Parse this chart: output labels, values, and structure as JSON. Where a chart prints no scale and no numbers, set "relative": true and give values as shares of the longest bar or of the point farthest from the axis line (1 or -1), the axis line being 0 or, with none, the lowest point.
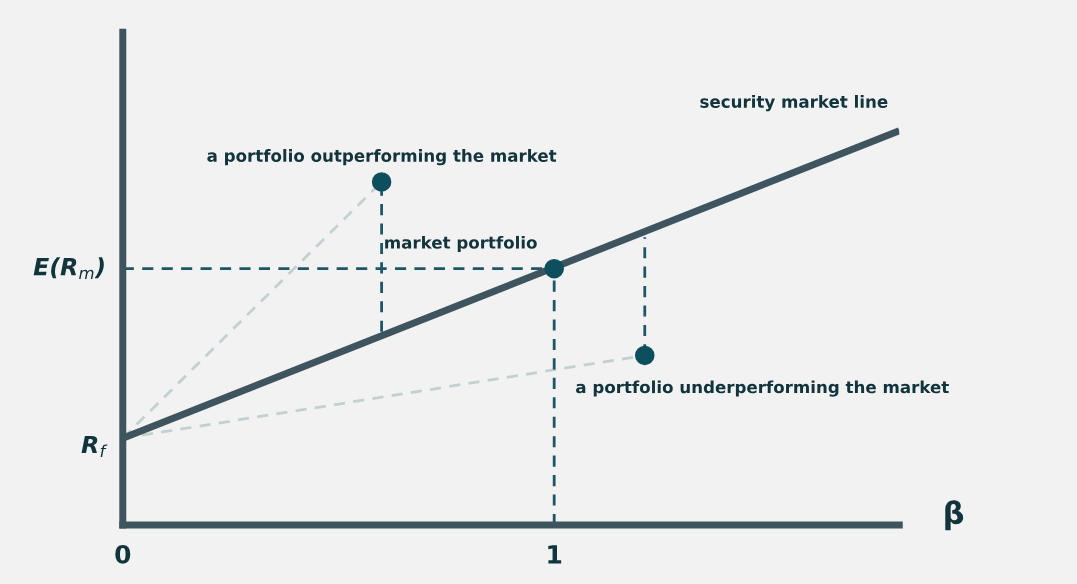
{
  "chart_data": {
    "type": "line",
    "relative": true,
    "xlabel": "β",
    "xlim": [
      0,
      1.8
    ],
    "xticks": [
      0,
      1
    ],
    "series": [
      {
        "name": "security market line",
        "line_style": "solid",
        "color": "#3e545e",
        "x": [
          0,
          1.8
        ],
        "values": [
          0.22,
          1.0
        ]
      },
      {
        "type": "line",
        "line_style": "dashed",
        "color": "#c3d0d2",
        "x": [
          0,
          0.6
        ],
        "values": [
          0.22,
          0.87
        ]
      },
      {
        "type": "line",
        "line_style": "dashed",
        "color": "#c3d0d2",
        "x": [
          0,
          1.21
        ],
        "values": [
          0.22,
          0.43
        ]
      },
      {
        "type": "line",
        "line_style": "dashed",
        "color": "#1d5666",
        "x": [
          0,
          1
        ],
        "values": [
          0.65,
          0.65
        ]
      },
      {
        "type": "line",
        "line_style": "dashed",
        "color": "#1d5666",
        "x": [
          1,
          1
        ],
        "values": [
          0,
          0.65
        ]
      },
      {
        "type": "line",
        "line_style": "dashed",
        "color": "#1d5666",
        "x": [
          0.6,
          0.6
        ],
        "values": [
          0.49,
          0.87
        ]
      },
      {
        "type": "line",
        "line_style": "dashed",
        "color": "#1d5666",
        "x": [
          1.21,
          1.21
        ],
        "values": [
          0.43,
          0.73
        ]
      },
      {
        "type": "scatter",
        "marker": "circle",
        "color": "#0e4f5e",
        "x": [
          0.6,
          1,
          1.21
        ],
        "values": [
          0.87,
          0.65,
          0.43
        ]
      }
    ],
    "annotations": [
      {
        "text": "a portfolio outperforming the market",
        "x": 0.6,
        "y": 0.87
      },
      {
        "text": "market portfolio",
        "x": 1,
        "y": 0.65
      },
      {
        "text": "a portfolio underperforming the market",
        "x": 1.21,
        "y": 0.43
      },
      {
        "text": "R$_{f}$",
        "x": 0,
        "y": 0.22
      },
      {
        "text": "E(R$_{m}$)",
        "x": 0,
        "y": 0.65
      }
    ]
  }
}
